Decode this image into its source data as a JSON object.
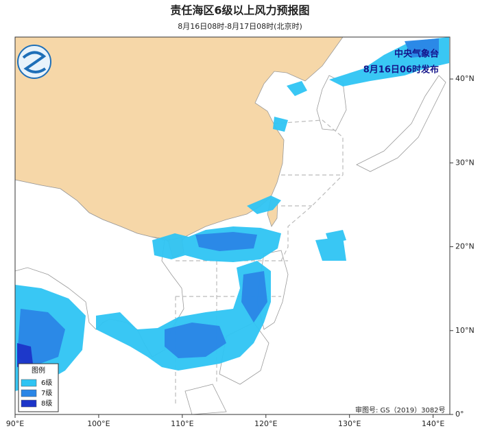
{
  "header": {
    "title": "责任海区6级以上风力预报图",
    "subtitle": "8月16日08时-8月17日08时(北京时)"
  },
  "publisher": [
    "中央气象台",
    "8月16日06时发布"
  ],
  "legend": {
    "title": "图例",
    "items": [
      {
        "label": "6级",
        "color": "#2ec4f3"
      },
      {
        "label": "7级",
        "color": "#2a86e6"
      },
      {
        "label": "8级",
        "color": "#1c34c8"
      }
    ]
  },
  "map": {
    "xlim": [
      90,
      142
    ],
    "ylim": [
      0,
      45
    ],
    "x_ticks": [
      {
        "value": 90,
        "label": "90°E"
      },
      {
        "value": 100,
        "label": "100°E"
      },
      {
        "value": 110,
        "label": "110°E"
      },
      {
        "value": 120,
        "label": "120°E"
      },
      {
        "value": 130,
        "label": "130°E"
      },
      {
        "value": 140,
        "label": "140°E"
      }
    ],
    "y_ticks": [
      {
        "value": 0,
        "label": "0°"
      },
      {
        "value": 10,
        "label": "10°N"
      },
      {
        "value": 20,
        "label": "20°N"
      },
      {
        "value": 30,
        "label": "30°N"
      },
      {
        "value": 40,
        "label": "40°N"
      }
    ]
  },
  "review_number": "审图号: GS（2019）3082号"
}
